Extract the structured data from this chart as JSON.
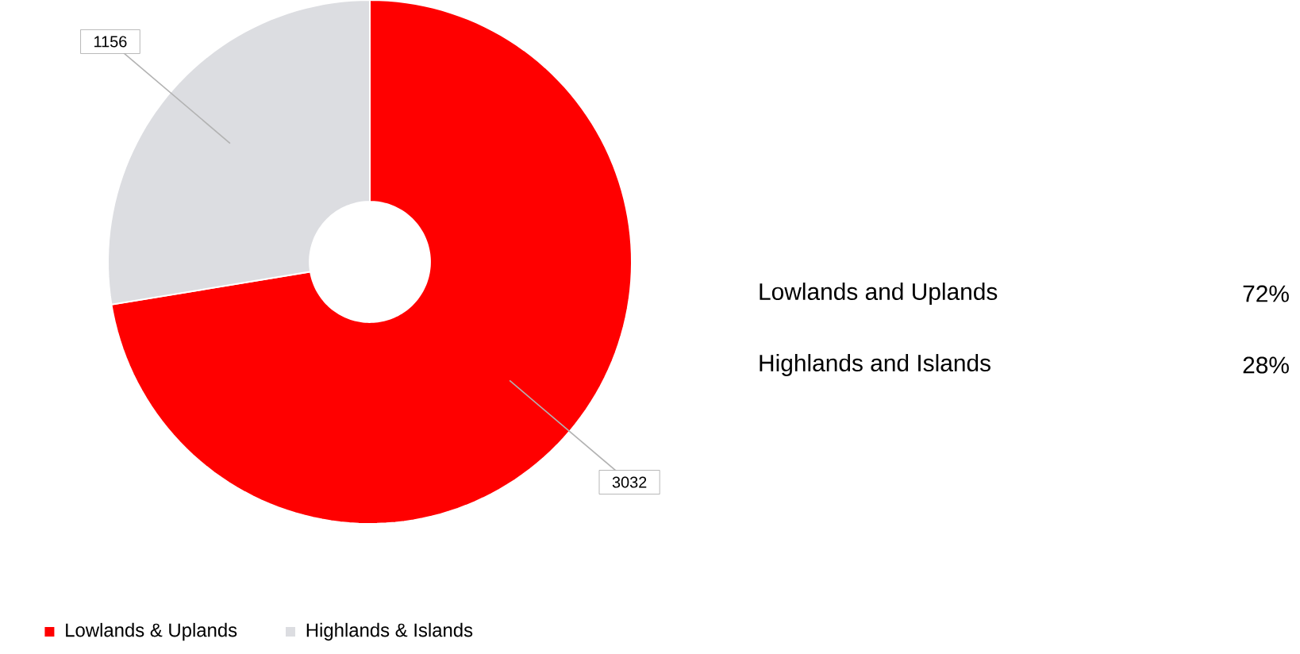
{
  "chart_data": {
    "type": "donut",
    "categories": [
      "Lowlands & Uplands",
      "Highlands & Islands"
    ],
    "values": [
      3032,
      1156
    ],
    "colors": [
      "#ff0000",
      "#dcdde1"
    ],
    "data_labels": true,
    "legend": "bottom left",
    "annotations": [
      "Lowlands and Uplands",
      "72%",
      "Highlands and Islands",
      "28%"
    ]
  }
}
